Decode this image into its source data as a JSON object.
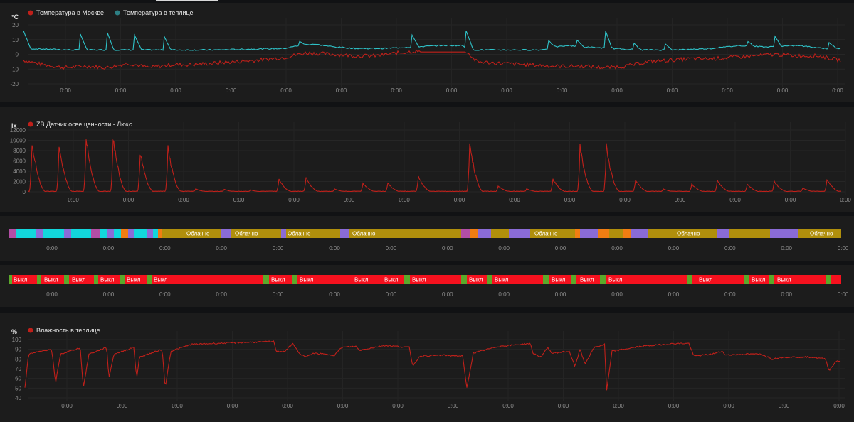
{
  "panels": {
    "temp": {
      "unit": "°C",
      "legend": [
        {
          "label": "Температура в Москве",
          "color": "#c0201a"
        },
        {
          "label": "Температура в теплице",
          "color": "#2fc3c9"
        }
      ],
      "y_ticks": [
        "20",
        "10",
        "0",
        "-10",
        "-20"
      ],
      "y_range": [
        -20,
        20
      ],
      "x_ticks": [
        "0:00",
        "0:00",
        "0:00",
        "0:00",
        "0:00",
        "0:00",
        "0:00",
        "0:00",
        "0:00",
        "0:00",
        "0:00",
        "0:00",
        "0:00",
        "0:00",
        "0:00"
      ]
    },
    "lux": {
      "unit": "lx",
      "legend": [
        {
          "label": "ZB Датчик освещенности - Люкс",
          "color": "#c0201a"
        }
      ],
      "y_ticks": [
        "12000",
        "10000",
        "8000",
        "6000",
        "4000",
        "2000",
        "0"
      ],
      "y_range": [
        0,
        12000
      ],
      "x_ticks": [
        "0:00",
        "0:00",
        "0:00",
        "0:00",
        "0:00",
        "0:00",
        "0:00",
        "0:00",
        "0:00",
        "0:00",
        "0:00",
        "0:00",
        "0:00",
        "0:00",
        "0:00"
      ]
    },
    "weather": {
      "label_cloudy": "Облачно",
      "colors": {
        "cloudy": "#b08f0c",
        "clear": "#12d6db",
        "purple": "#8a6bd6",
        "orange": "#f07d12",
        "magenta": "#b34ea5"
      },
      "x_ticks": [
        "0:00",
        "0:00",
        "0:00",
        "0:00",
        "0:00",
        "0:00",
        "0:00",
        "0:00",
        "0:00",
        "0:00",
        "0:00",
        "0:00",
        "0:00",
        "0:00",
        "0:00"
      ]
    },
    "switch": {
      "label_off": "Выкл",
      "colors": {
        "off": "#f5111e",
        "on": "#5ba92a"
      },
      "x_ticks": [
        "0:00",
        "0:00",
        "0:00",
        "0:00",
        "0:00",
        "0:00",
        "0:00",
        "0:00",
        "0:00",
        "0:00",
        "0:00",
        "0:00",
        "0:00",
        "0:00",
        "0:00"
      ]
    },
    "humidity": {
      "unit": "%",
      "legend": [
        {
          "label": "Влажность в теплице",
          "color": "#c0201a"
        }
      ],
      "y_ticks": [
        "100",
        "90",
        "80",
        "70",
        "60",
        "50",
        "40"
      ],
      "y_range": [
        40,
        100
      ],
      "x_ticks": [
        "0:00",
        "0:00",
        "0:00",
        "0:00",
        "0:00",
        "0:00",
        "0:00",
        "0:00",
        "0:00",
        "0:00",
        "0:00",
        "0:00",
        "0:00",
        "0:00",
        "0:00"
      ]
    }
  }
}
